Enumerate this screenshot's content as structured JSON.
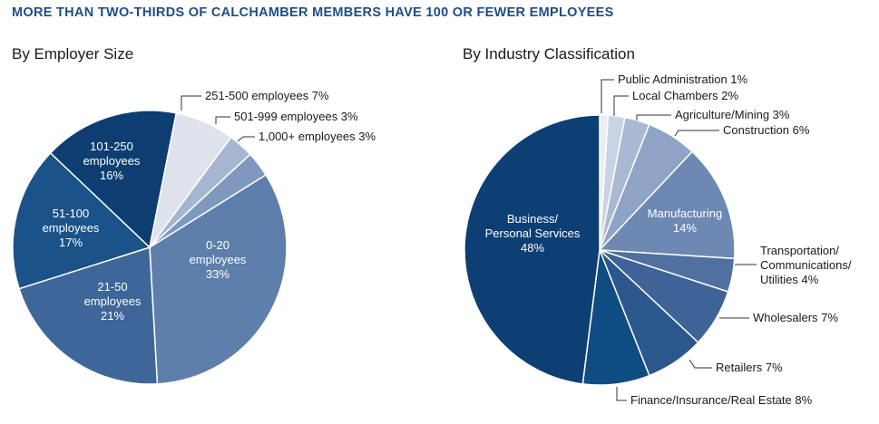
{
  "headline": "MORE THAN TWO-THIRDS OF CALCHAMBER MEMBERS HAVE 100 OR FEWER EMPLOYEES",
  "chart_data": [
    {
      "type": "pie",
      "title": "By Employer Size",
      "slices": [
        {
          "label": "0-20 employees",
          "lines": [
            "0-20",
            "employees",
            "33%"
          ],
          "value": 33,
          "color": "#5e7fab",
          "label_position": "inside"
        },
        {
          "label": "21-50 employees",
          "lines": [
            "21-50",
            "employees",
            "21%"
          ],
          "value": 21,
          "color": "#3f6699",
          "label_position": "inside"
        },
        {
          "label": "51-100 employees",
          "lines": [
            "51-100",
            "employees",
            "17%"
          ],
          "value": 17,
          "color": "#1b5288",
          "label_position": "inside"
        },
        {
          "label": "101-250 employees",
          "lines": [
            "101-250",
            "employees",
            "16%"
          ],
          "value": 16,
          "color": "#0e3d72",
          "label_position": "inside"
        },
        {
          "label": "251-500 employees",
          "lines": [
            "251-500 employees 7%"
          ],
          "value": 7,
          "color": "#dde2ed",
          "label_position": "outside"
        },
        {
          "label": "501-999 employees",
          "lines": [
            "501-999 employees 3%"
          ],
          "value": 3,
          "color": "#a7b6d0",
          "label_position": "outside"
        },
        {
          "label": "1,000+ employees",
          "lines": [
            "1,000+ employees 3%"
          ],
          "value": 3,
          "color": "#7f98bd",
          "label_position": "outside"
        }
      ]
    },
    {
      "type": "pie",
      "title": "By Industry Classification",
      "slices": [
        {
          "label": "Public Administration",
          "lines": [
            "Public Administration 1%"
          ],
          "value": 1,
          "color": "#e9edf4",
          "label_position": "outside"
        },
        {
          "label": "Local Chambers",
          "lines": [
            "Local Chambers 2%"
          ],
          "value": 2,
          "color": "#c9d3e4",
          "label_position": "outside"
        },
        {
          "label": "Agriculture/Mining",
          "lines": [
            "Agriculture/Mining 3%"
          ],
          "value": 3,
          "color": "#aab9d3",
          "label_position": "outside"
        },
        {
          "label": "Construction",
          "lines": [
            "Construction 6%"
          ],
          "value": 6,
          "color": "#8ea3c6",
          "label_position": "outside"
        },
        {
          "label": "Manufacturing",
          "lines": [
            "Manufacturing",
            "14%"
          ],
          "value": 14,
          "color": "#6c88b3",
          "label_position": "inside"
        },
        {
          "label": "Transportation/Communications/Utilities",
          "lines": [
            "Transportation/",
            "Communications/",
            "Utilities 4%"
          ],
          "value": 4,
          "color": "#50709f",
          "label_position": "outside"
        },
        {
          "label": "Wholesalers",
          "lines": [
            "Wholesalers 7%"
          ],
          "value": 7,
          "color": "#3f6396",
          "label_position": "outside"
        },
        {
          "label": "Retailers",
          "lines": [
            "Retailers 7%"
          ],
          "value": 7,
          "color": "#2c578c",
          "label_position": "outside"
        },
        {
          "label": "Finance/Insurance/Real Estate",
          "lines": [
            "Finance/Insurance/Real Estate 8%"
          ],
          "value": 8,
          "color": "#0f4c82",
          "label_position": "outside"
        },
        {
          "label": "Business/Personal Services",
          "lines": [
            "Business/",
            "Personal Services",
            "48%"
          ],
          "value": 48,
          "color": "#0d3f74",
          "label_position": "inside"
        }
      ]
    }
  ]
}
